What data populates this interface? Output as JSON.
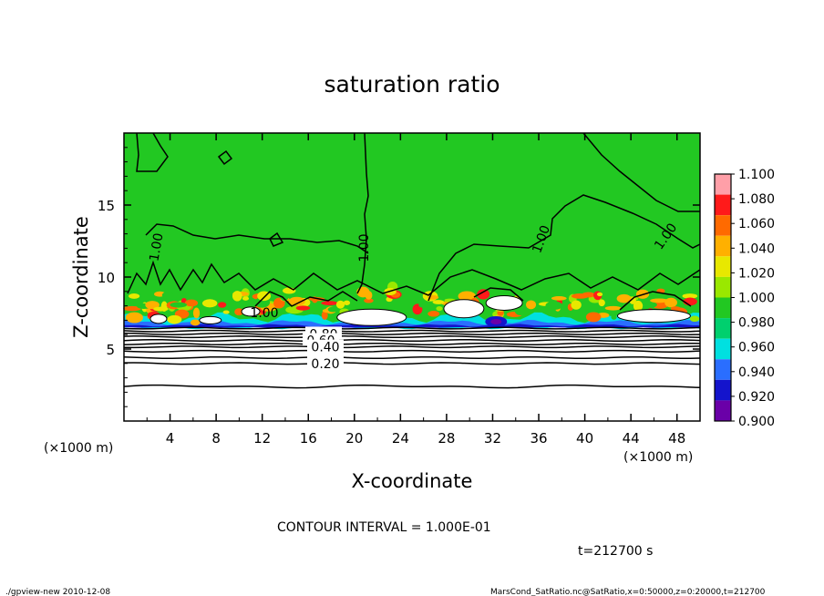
{
  "chart_data": {
    "type": "heatmap",
    "title": "saturation ratio",
    "xlabel": "X-coordinate",
    "ylabel": "Z-coordinate",
    "x_unit": "(×1000 m)",
    "z_unit": "(×1000 m)",
    "xlim": [
      0,
      50
    ],
    "ylim": [
      0,
      20
    ],
    "x_ticks": [
      4,
      8,
      12,
      16,
      20,
      24,
      28,
      32,
      36,
      40,
      44,
      48
    ],
    "y_ticks": [
      5,
      10,
      15
    ],
    "colorbar": {
      "levels": [
        "1.100",
        "1.080",
        "1.060",
        "1.040",
        "1.020",
        "1.000",
        "0.980",
        "0.960",
        "0.940",
        "0.920",
        "0.900"
      ],
      "colors": [
        "#ff9fa8",
        "#ff1a1a",
        "#ff6a00",
        "#ffb000",
        "#e8e800",
        "#9ae800",
        "#22c822",
        "#00d06e",
        "#00e0e0",
        "#2a6eff",
        "#1414cc",
        "#6a00a8"
      ]
    },
    "contour_labels_upper": [
      "1.00",
      "1.00",
      "1.00",
      "1.00",
      "1.00"
    ],
    "contour_labels_lower": [
      "0.80",
      "0.60",
      "0.40",
      "0.20"
    ],
    "contour_levels_lower_z": [
      {
        "value": 0.2,
        "z": 4.0
      },
      {
        "value": 0.4,
        "z": 5.15
      },
      {
        "value": 0.6,
        "z": 5.6
      },
      {
        "value": 0.8,
        "z": 6.05
      }
    ],
    "extra_contours_z": [
      2.4,
      4.4,
      4.85,
      5.35,
      5.85,
      6.25,
      6.45
    ]
  },
  "annotations": {
    "contour_interval": "CONTOUR INTERVAL = 1.000E-01",
    "time": "t=212700 s",
    "footer_left": "./gpview-new  2010-12-08",
    "footer_right": "MarsCond_SatRatio.nc@SatRatio,x=0:50000,z=0:20000,t=212700"
  }
}
